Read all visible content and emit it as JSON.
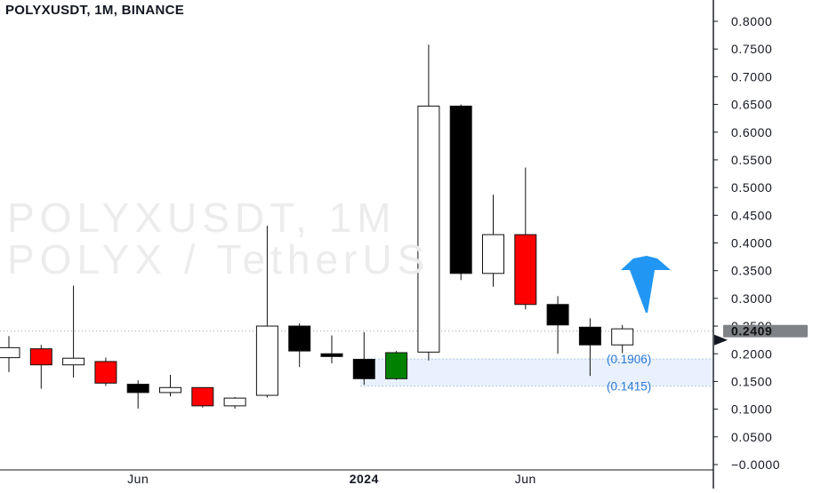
{
  "header": {
    "title": "POLYXUSDT, 1M, BINANCE"
  },
  "watermark": {
    "line1": "POLYXUSDT, 1M",
    "line2": "POLYX / TetherUS"
  },
  "chart_data": {
    "type": "candlestick",
    "symbol": "POLYXUSDT",
    "interval": "1M",
    "exchange": "BINANCE",
    "ylim": [
      -0.01,
      0.82
    ],
    "y_ticks": [
      "0.8000",
      "0.7500",
      "0.7000",
      "0.6500",
      "0.6000",
      "0.5500",
      "0.5000",
      "0.4500",
      "0.4000",
      "0.3500",
      "0.3000",
      "0.2500",
      "0.2000",
      "0.1500",
      "0.1000",
      "0.0500",
      "−0.0000"
    ],
    "y_tick_values": [
      0.8,
      0.75,
      0.7,
      0.65,
      0.6,
      0.55,
      0.5,
      0.45,
      0.4,
      0.35,
      0.3,
      0.25,
      0.2,
      0.15,
      0.1,
      0.05,
      0.0
    ],
    "x_labels": [
      {
        "text": "Jun",
        "index": 4
      },
      {
        "text": "2024",
        "index": 11
      },
      {
        "text": "Jun",
        "index": 16
      }
    ],
    "candles": [
      {
        "o": 0.193,
        "h": 0.232,
        "l": 0.167,
        "c": 0.211,
        "color": "#ffffff"
      },
      {
        "o": 0.209,
        "h": 0.216,
        "l": 0.137,
        "c": 0.18,
        "color": "#ff0000"
      },
      {
        "o": 0.18,
        "h": 0.323,
        "l": 0.157,
        "c": 0.192,
        "color": "#ffffff"
      },
      {
        "o": 0.186,
        "h": 0.193,
        "l": 0.142,
        "c": 0.147,
        "color": "#ff0000"
      },
      {
        "o": 0.145,
        "h": 0.152,
        "l": 0.101,
        "c": 0.13,
        "color": "#000000"
      },
      {
        "o": 0.13,
        "h": 0.162,
        "l": 0.123,
        "c": 0.139,
        "color": "#ffffff"
      },
      {
        "o": 0.139,
        "h": 0.139,
        "l": 0.103,
        "c": 0.106,
        "color": "#ff0000"
      },
      {
        "o": 0.106,
        "h": 0.122,
        "l": 0.101,
        "c": 0.12,
        "color": "#ffffff"
      },
      {
        "o": 0.125,
        "h": 0.431,
        "l": 0.121,
        "c": 0.25,
        "color": "#ffffff"
      },
      {
        "o": 0.25,
        "h": 0.255,
        "l": 0.176,
        "c": 0.205,
        "color": "#000000"
      },
      {
        "o": 0.2,
        "h": 0.233,
        "l": 0.183,
        "c": 0.195,
        "color": "#000000"
      },
      {
        "o": 0.19,
        "h": 0.239,
        "l": 0.144,
        "c": 0.155,
        "color": "#000000"
      },
      {
        "o": 0.155,
        "h": 0.205,
        "l": 0.153,
        "c": 0.202,
        "color": "#008000"
      },
      {
        "o": 0.203,
        "h": 0.758,
        "l": 0.188,
        "c": 0.647,
        "color": "#ffffff"
      },
      {
        "o": 0.647,
        "h": 0.65,
        "l": 0.333,
        "c": 0.345,
        "color": "#000000"
      },
      {
        "o": 0.345,
        "h": 0.487,
        "l": 0.321,
        "c": 0.415,
        "color": "#ffffff"
      },
      {
        "o": 0.415,
        "h": 0.536,
        "l": 0.28,
        "c": 0.289,
        "color": "#ff0000"
      },
      {
        "o": 0.289,
        "h": 0.304,
        "l": 0.2,
        "c": 0.252,
        "color": "#000000"
      },
      {
        "o": 0.248,
        "h": 0.264,
        "l": 0.16,
        "c": 0.216,
        "color": "#000000"
      },
      {
        "o": 0.216,
        "h": 0.252,
        "l": 0.201,
        "c": 0.245,
        "color": "#ffffff"
      }
    ],
    "current_price": 0.2409,
    "current_price_label": "0.2409",
    "levels": [
      {
        "value": 0.1906,
        "label": "(0.1906)"
      },
      {
        "value": 0.1415,
        "label": "(0.1415)"
      }
    ],
    "annotation": {
      "type": "arrow-up",
      "color": "#2196f3"
    }
  }
}
